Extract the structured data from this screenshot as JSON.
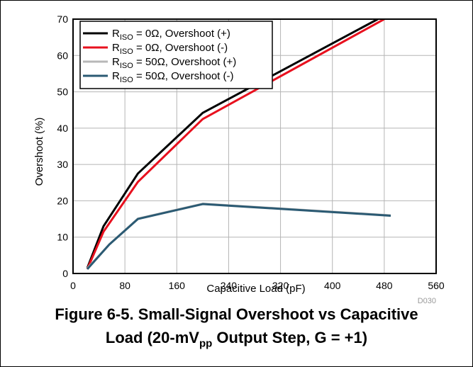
{
  "chart_data": {
    "type": "line",
    "xlabel": "Capacitive Load (pF)",
    "ylabel": "Overshoot (%)",
    "xlim": [
      0,
      560
    ],
    "ylim": [
      0,
      70
    ],
    "xticks": [
      0,
      80,
      160,
      240,
      320,
      400,
      480,
      560
    ],
    "yticks": [
      0,
      10,
      20,
      30,
      40,
      50,
      60,
      70
    ],
    "grid": true,
    "legend_position": "top-left",
    "series": [
      {
        "name": "R_ISO = 0Ω, Overshoot (+)",
        "name_main": "R",
        "name_sub": "ISO",
        "name_rest": " = 0Ω, Overshoot (+)",
        "color": "#000000",
        "x": [
          22,
          47,
          100,
          200,
          470
        ],
        "y": [
          1.5,
          13,
          27.5,
          44.2,
          70
        ]
      },
      {
        "name": "R_ISO = 0Ω, Overshoot (-)",
        "name_main": "R",
        "name_sub": "ISO",
        "name_rest": " = 0Ω, Overshoot (-)",
        "color": "#e8101e",
        "x": [
          22,
          47,
          100,
          200,
          480
        ],
        "y": [
          1.2,
          11.5,
          25.2,
          42.5,
          70
        ]
      },
      {
        "name": "R_ISO = 50Ω, Overshoot (+)",
        "name_main": "R",
        "name_sub": "ISO",
        "name_rest": " = 50Ω, Overshoot (+)",
        "color": "#b8b8b8",
        "x": [
          22,
          56,
          100,
          200,
          490
        ],
        "y": [
          1.4,
          8,
          15.1,
          19.2,
          16
        ]
      },
      {
        "name": "R_ISO = 50Ω, Overshoot (-)",
        "name_main": "R",
        "name_sub": "ISO",
        "name_rest": " = 50Ω, Overshoot (-)",
        "color": "#2b5a73",
        "x": [
          22,
          56,
          100,
          200,
          490
        ],
        "y": [
          1.2,
          8,
          15,
          19.1,
          15.9
        ]
      }
    ],
    "figure_code": "D030"
  },
  "caption": {
    "line1": "Figure 6-5. Small-Signal Overshoot vs Capacitive",
    "line2_a": "Load (20-mV",
    "line2_sub": "pp",
    "line2_b": " Output Step, G = +1)"
  }
}
